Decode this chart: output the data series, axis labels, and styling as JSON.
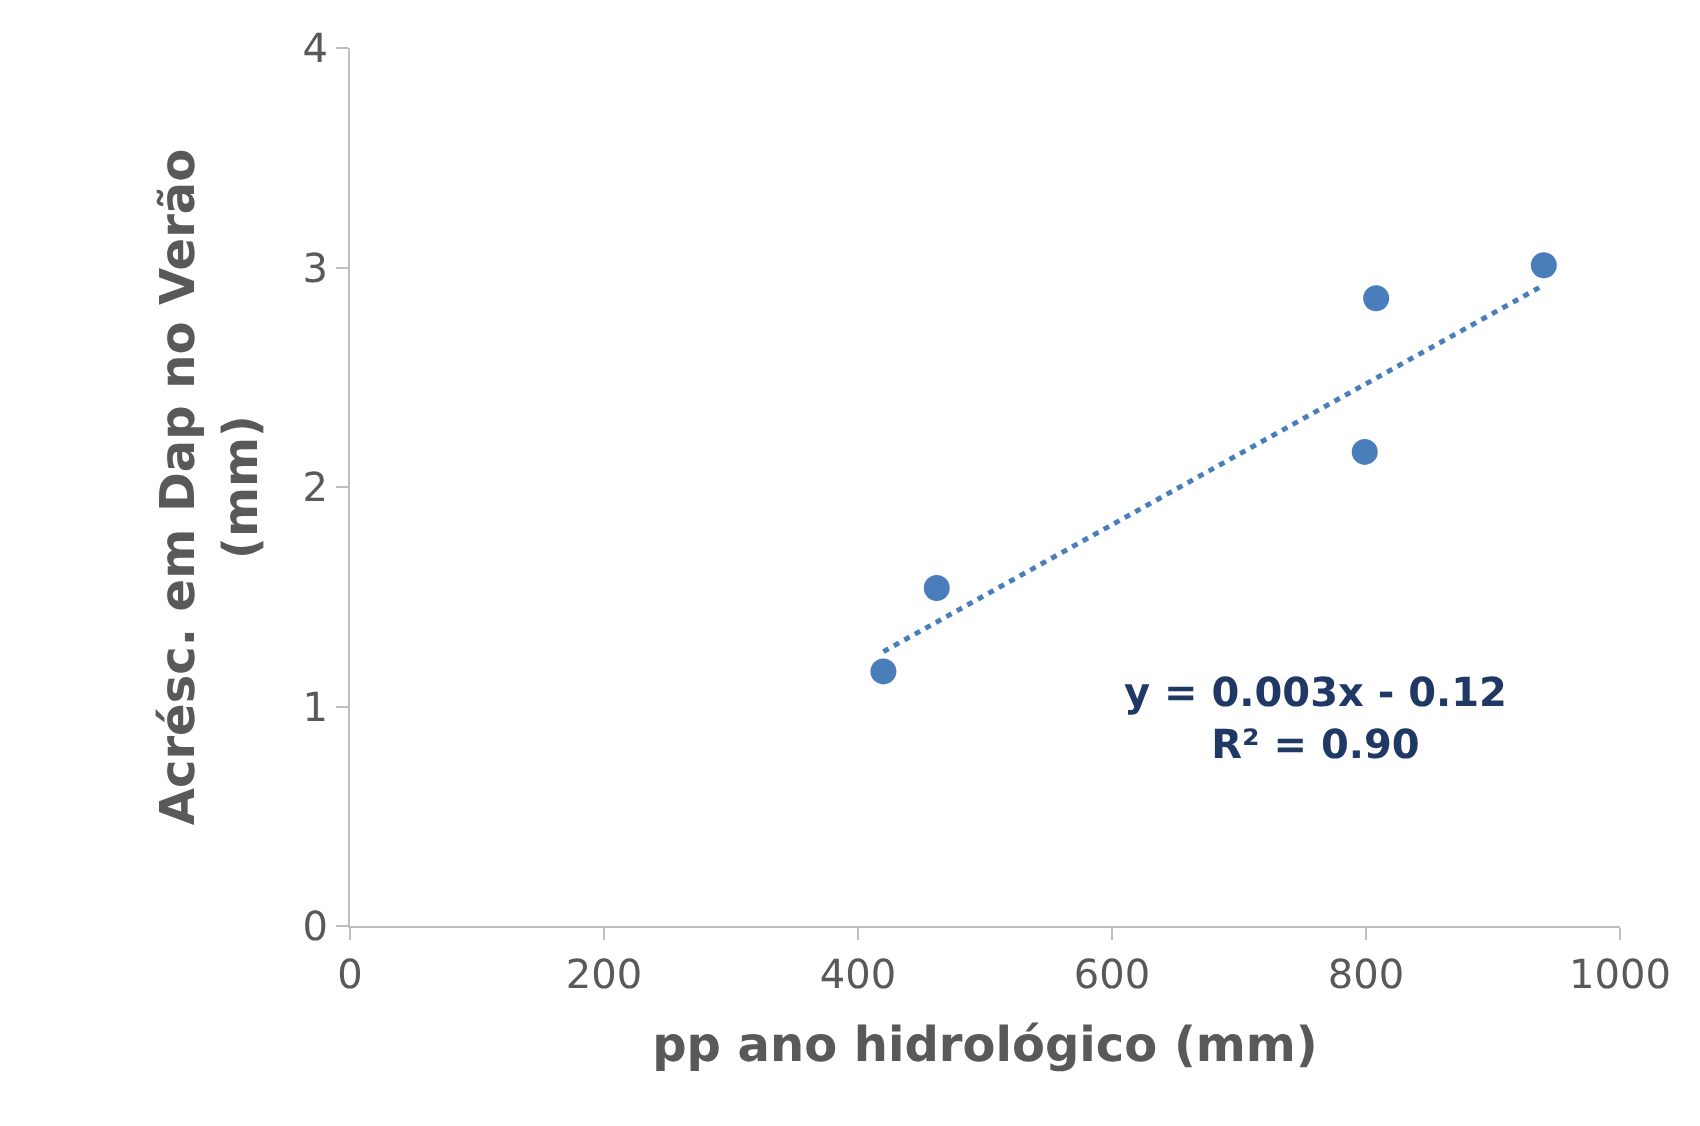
{
  "chart_data": {
    "type": "scatter",
    "xlabel": "pp ano hidrológico (mm)",
    "ylabel": "Acrésc. em Dap no Verão\n(mm)",
    "series": [
      {
        "color": "#4a7ebb",
        "marker": "circle",
        "x": [
          420,
          462,
          799,
          808,
          940
        ],
        "values": [
          1.16,
          1.54,
          2.16,
          2.86,
          3.01
        ]
      },
      {
        "type": "line",
        "color": "#4a7ebb",
        "line_style": "dotted",
        "marker": "none",
        "x": [
          420,
          940
        ],
        "values": [
          1.25,
          2.92
        ]
      }
    ],
    "xlim": [
      0,
      1000
    ],
    "xticks": [
      0,
      200,
      400,
      600,
      800,
      1000
    ],
    "ylim": [
      0,
      4
    ],
    "yticks": [
      0,
      1,
      2,
      3,
      4
    ],
    "annotations": [
      "y = 0.003x - 0.12\nR² = 0.90"
    ]
  }
}
